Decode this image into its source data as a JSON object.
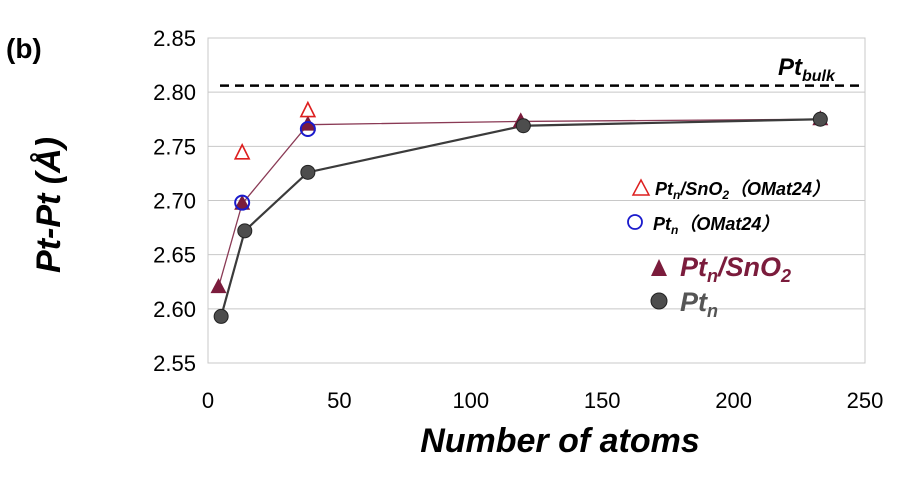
{
  "panel_label": "(b)",
  "colors": {
    "pt_sno2": "#7B1C3C",
    "pt": "#4d4d4d",
    "omat_sno2": "#dd1f1f",
    "omat_pt": "#1a1acc",
    "bulk_line": "#000000"
  },
  "chart_data": {
    "type": "scatter",
    "title": "",
    "xlabel": "Number of atoms",
    "ylabel": "Pt-Pt (Å)",
    "xlim": [
      0,
      250
    ],
    "ylim": [
      2.55,
      2.85
    ],
    "xticks": [
      0,
      50,
      100,
      150,
      200,
      250
    ],
    "yticks": [
      2.55,
      2.6,
      2.65,
      2.7,
      2.75,
      2.8,
      2.85
    ],
    "xtick_labels": [
      "0",
      "50",
      "100",
      "150",
      "200",
      "250"
    ],
    "ytick_labels": [
      "2.55",
      "2.60",
      "2.65",
      "2.70",
      "2.75",
      "2.80",
      "2.85"
    ],
    "reference_line": {
      "label_main": "Pt",
      "label_sub": "bulk",
      "y": 2.806
    },
    "series": [
      {
        "key": "pt_sno2",
        "name_main": "Pt",
        "name_sub": "n",
        "name_tail": "/SnO",
        "name_tail_sub": "2",
        "marker": "filled-triangle",
        "connected": true,
        "x": [
          4,
          13,
          38,
          119,
          233
        ],
        "y": [
          2.62,
          2.697,
          2.77,
          2.773,
          2.775
        ]
      },
      {
        "key": "pt",
        "name_main": "Pt",
        "name_sub": "n",
        "marker": "filled-circle",
        "connected": true,
        "x": [
          5,
          14,
          38,
          120,
          233
        ],
        "y": [
          2.593,
          2.672,
          2.726,
          2.769,
          2.775
        ]
      },
      {
        "key": "omat_sno2",
        "name_main": "Pt",
        "name_sub": "n",
        "name_tail": "/SnO",
        "name_tail_sub": "2",
        "name_note": "（OMat24）",
        "marker": "open-triangle",
        "connected": false,
        "x": [
          13,
          38
        ],
        "y": [
          2.744,
          2.783
        ]
      },
      {
        "key": "omat_pt",
        "name_main": "Pt",
        "name_sub": "n",
        "name_note": "（OMat24）",
        "marker": "open-circle",
        "connected": false,
        "x": [
          13,
          38
        ],
        "y": [
          2.698,
          2.766
        ]
      }
    ]
  }
}
